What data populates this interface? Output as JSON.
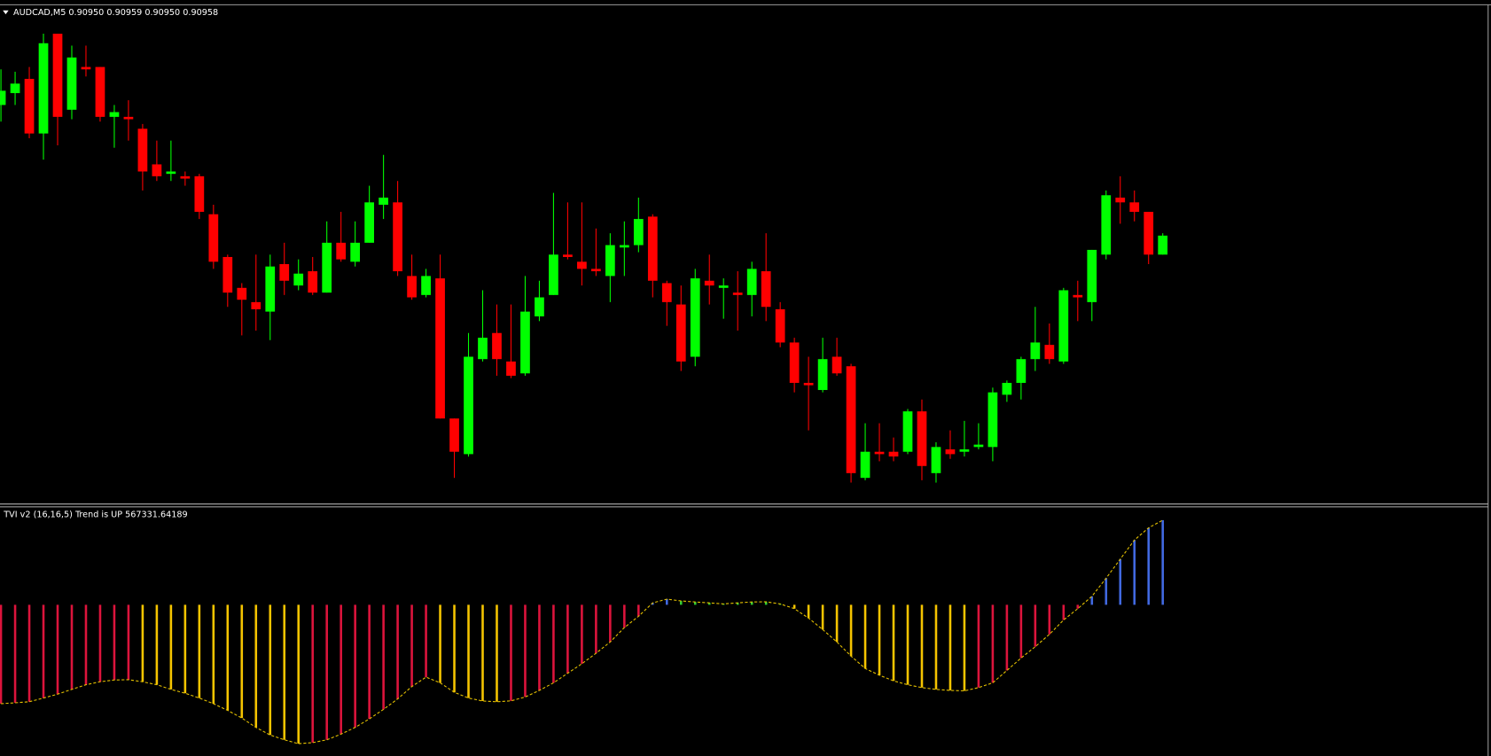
{
  "chart_data": [
    {
      "type": "candlestick",
      "symbol": "AUDCAD,M5",
      "ohlc_labels": [
        "0.90950",
        "0.90959",
        "0.90950",
        "0.90958"
      ],
      "up_color": "#00ff00",
      "down_color": "#ff0000",
      "ylim": [
        0.90845,
        0.91054
      ],
      "open": [
        0.91013,
        0.91018,
        0.91024,
        0.91001,
        0.91043,
        0.91011,
        0.91029,
        0.91029,
        0.91008,
        0.91008,
        0.91003,
        0.90988,
        0.90984,
        0.90983,
        0.90983,
        0.90967,
        0.90949,
        0.90936,
        0.9093,
        0.90926,
        0.90946,
        0.90937,
        0.90943,
        0.90934,
        0.90955,
        0.90947,
        0.90955,
        0.90971,
        0.90972,
        0.90941,
        0.90933,
        0.9094,
        0.90881,
        0.90866,
        0.90906,
        0.90917,
        0.90905,
        0.909,
        0.90924,
        0.90933,
        0.9095,
        0.90947,
        0.90944,
        0.90941,
        0.90953,
        0.90954,
        0.90966,
        0.90938,
        0.90929,
        0.90907,
        0.90939,
        0.90936,
        0.90934,
        0.90933,
        0.90943,
        0.90927,
        0.90913,
        0.90896,
        0.90893,
        0.90907,
        0.90903,
        0.90856,
        0.90867,
        0.90867,
        0.90867,
        0.90884,
        0.90858,
        0.90868,
        0.90867,
        0.90869,
        0.90869,
        0.90891,
        0.90896,
        0.90906,
        0.90912,
        0.90905,
        0.90933,
        0.9093,
        0.9095,
        0.90974,
        0.90972,
        0.90968,
        0.9095
      ],
      "high": [
        0.91028,
        0.91027,
        0.91029,
        0.91043,
        0.91043,
        0.91038,
        0.91038,
        0.91029,
        0.91013,
        0.91015,
        0.91005,
        0.90998,
        0.90998,
        0.90985,
        0.90984,
        0.90971,
        0.9095,
        0.90938,
        0.9095,
        0.9095,
        0.90955,
        0.90948,
        0.90949,
        0.90964,
        0.90968,
        0.90964,
        0.90979,
        0.90992,
        0.90981,
        0.9095,
        0.90944,
        0.9095,
        0.90881,
        0.90917,
        0.90935,
        0.90929,
        0.90929,
        0.90941,
        0.90939,
        0.90976,
        0.90972,
        0.90972,
        0.90961,
        0.90959,
        0.90964,
        0.90974,
        0.90967,
        0.90939,
        0.90937,
        0.90944,
        0.9095,
        0.9094,
        0.90943,
        0.90947,
        0.90959,
        0.9093,
        0.90915,
        0.90907,
        0.90915,
        0.90915,
        0.90904,
        0.90879,
        0.90879,
        0.90873,
        0.90885,
        0.90889,
        0.90871,
        0.90876,
        0.9088,
        0.90879,
        0.90894,
        0.90897,
        0.90907,
        0.90928,
        0.90921,
        0.90936,
        0.90939,
        0.90952,
        0.90977,
        0.90983,
        0.90977,
        0.90968,
        0.90959
      ],
      "low": [
        0.91006,
        0.91013,
        0.90999,
        0.9099,
        0.90996,
        0.91007,
        0.91025,
        0.91006,
        0.90995,
        0.90998,
        0.90977,
        0.90981,
        0.90981,
        0.90979,
        0.90965,
        0.90944,
        0.90928,
        0.90916,
        0.90918,
        0.90914,
        0.90933,
        0.90935,
        0.90933,
        0.90934,
        0.90947,
        0.90945,
        0.90955,
        0.90965,
        0.90941,
        0.90931,
        0.90932,
        0.90881,
        0.90856,
        0.90865,
        0.90905,
        0.90899,
        0.90898,
        0.90899,
        0.90922,
        0.90933,
        0.90948,
        0.90937,
        0.90941,
        0.9093,
        0.90941,
        0.90951,
        0.90932,
        0.9092,
        0.90901,
        0.90903,
        0.90929,
        0.90923,
        0.90918,
        0.90924,
        0.90922,
        0.90911,
        0.90892,
        0.90876,
        0.90892,
        0.90899,
        0.90854,
        0.90855,
        0.90863,
        0.90863,
        0.90866,
        0.90855,
        0.90854,
        0.90864,
        0.90865,
        0.90868,
        0.90863,
        0.90888,
        0.90889,
        0.90901,
        0.90904,
        0.90904,
        0.90922,
        0.90922,
        0.90948,
        0.90963,
        0.90964,
        0.90946,
        0.9095
      ],
      "close": [
        0.91019,
        0.91022,
        0.91001,
        0.91039,
        0.91008,
        0.91033,
        0.91028,
        0.91008,
        0.9101,
        0.91007,
        0.90985,
        0.90983,
        0.90985,
        0.90982,
        0.90968,
        0.90947,
        0.90934,
        0.90931,
        0.90927,
        0.90945,
        0.90939,
        0.90942,
        0.90934,
        0.90955,
        0.90948,
        0.90955,
        0.90972,
        0.90974,
        0.90943,
        0.90932,
        0.90941,
        0.90881,
        0.90867,
        0.90907,
        0.90915,
        0.90906,
        0.90899,
        0.90926,
        0.90932,
        0.9095,
        0.90949,
        0.90944,
        0.90943,
        0.90954,
        0.90954,
        0.90965,
        0.90939,
        0.9093,
        0.90905,
        0.9094,
        0.90937,
        0.90937,
        0.90933,
        0.90944,
        0.90928,
        0.90913,
        0.90896,
        0.90895,
        0.90906,
        0.909,
        0.90858,
        0.90867,
        0.90866,
        0.90865,
        0.90884,
        0.90861,
        0.90869,
        0.90866,
        0.90868,
        0.9087,
        0.90892,
        0.90896,
        0.90906,
        0.90913,
        0.90906,
        0.90935,
        0.90932,
        0.90952,
        0.90975,
        0.90972,
        0.90968,
        0.9095,
        0.90958
      ]
    },
    {
      "type": "bar",
      "title": "TVI v2 (16,16,5) Trend is UP",
      "ylim": [
        -1013600,
        631100
      ],
      "line_color": "#e6c200",
      "values": [
        -663000,
        -657000,
        -650000,
        -625000,
        -599000,
        -567000,
        -536000,
        -516000,
        -504000,
        -502000,
        -516000,
        -536000,
        -567000,
        -593000,
        -625000,
        -663000,
        -708000,
        -759000,
        -822000,
        -873000,
        -905000,
        -931000,
        -924000,
        -905000,
        -867000,
        -822000,
        -765000,
        -701000,
        -631000,
        -548000,
        -485000,
        -523000,
        -587000,
        -625000,
        -645000,
        -650000,
        -644000,
        -618000,
        -574000,
        -523000,
        -459000,
        -395000,
        -325000,
        -249000,
        -153000,
        -77000,
        13000,
        38000,
        26000,
        19000,
        13000,
        6000,
        13000,
        19000,
        20000,
        6000,
        -26000,
        -89000,
        -166000,
        -249000,
        -344000,
        -427000,
        -472000,
        -510000,
        -536000,
        -555000,
        -567000,
        -574000,
        -577000,
        -555000,
        -523000,
        -440000,
        -357000,
        -281000,
        -198000,
        -102000,
        -26000,
        57000,
        178000,
        306000,
        434000,
        516000,
        567331.64189
      ],
      "colors": [
        "#dc143c",
        "#dc143c",
        "#dc143c",
        "#dc143c",
        "#dc143c",
        "#dc143c",
        "#dc143c",
        "#dc143c",
        "#dc143c",
        "#dc143c",
        "#f5c400",
        "#f5c400",
        "#f5c400",
        "#f5c400",
        "#f5c400",
        "#f5c400",
        "#f5c400",
        "#f5c400",
        "#f5c400",
        "#f5c400",
        "#f5c400",
        "#f5c400",
        "#dc143c",
        "#dc143c",
        "#dc143c",
        "#dc143c",
        "#dc143c",
        "#dc143c",
        "#dc143c",
        "#dc143c",
        "#dc143c",
        "#f5c400",
        "#f5c400",
        "#f5c400",
        "#f5c400",
        "#f5c400",
        "#dc143c",
        "#dc143c",
        "#dc143c",
        "#dc143c",
        "#dc143c",
        "#dc143c",
        "#dc143c",
        "#dc143c",
        "#dc143c",
        "#dc143c",
        "#4169e1",
        "#4169e1",
        "#32cd32",
        "#32cd32",
        "#32cd32",
        "#32cd32",
        "#32cd32",
        "#32cd32",
        "#32cd32",
        "#32cd32",
        "#f5c400",
        "#f5c400",
        "#f5c400",
        "#f5c400",
        "#f5c400",
        "#f5c400",
        "#f5c400",
        "#f5c400",
        "#f5c400",
        "#f5c400",
        "#f5c400",
        "#f5c400",
        "#f5c400",
        "#dc143c",
        "#dc143c",
        "#dc143c",
        "#dc143c",
        "#dc143c",
        "#dc143c",
        "#dc143c",
        "#dc143c",
        "#4169e1",
        "#4169e1",
        "#4169e1",
        "#4169e1",
        "#4169e1",
        "#4169e1"
      ]
    }
  ]
}
